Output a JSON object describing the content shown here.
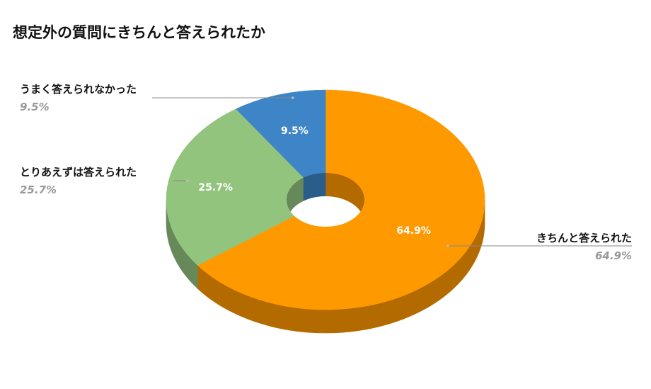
{
  "chart_data": {
    "type": "pie",
    "subtype": "3d-doughnut",
    "title": "想定外の質問にきちんと答えられたか",
    "slices": [
      {
        "label": "きちんと答えられた",
        "value": 64.9,
        "display": "64.9%",
        "color": "#FF9900",
        "side_color": "#B36B00"
      },
      {
        "label": "とりあえずは答えられた",
        "value": 25.7,
        "display": "25.7%",
        "color": "#93C47D",
        "side_color": "#678959"
      },
      {
        "label": "うまく答えられなかった",
        "value": 9.5,
        "display": "9.5%",
        "color": "#3D85C6",
        "side_color": "#2B5D8B"
      }
    ],
    "start_angle": "12 o'clock, clockwise",
    "legend": "none (external callout labels)",
    "colors": {
      "label_text": "#111111",
      "callout_percent": "#999999",
      "data_label": "#ffffff",
      "leader_line": "#888888"
    }
  }
}
